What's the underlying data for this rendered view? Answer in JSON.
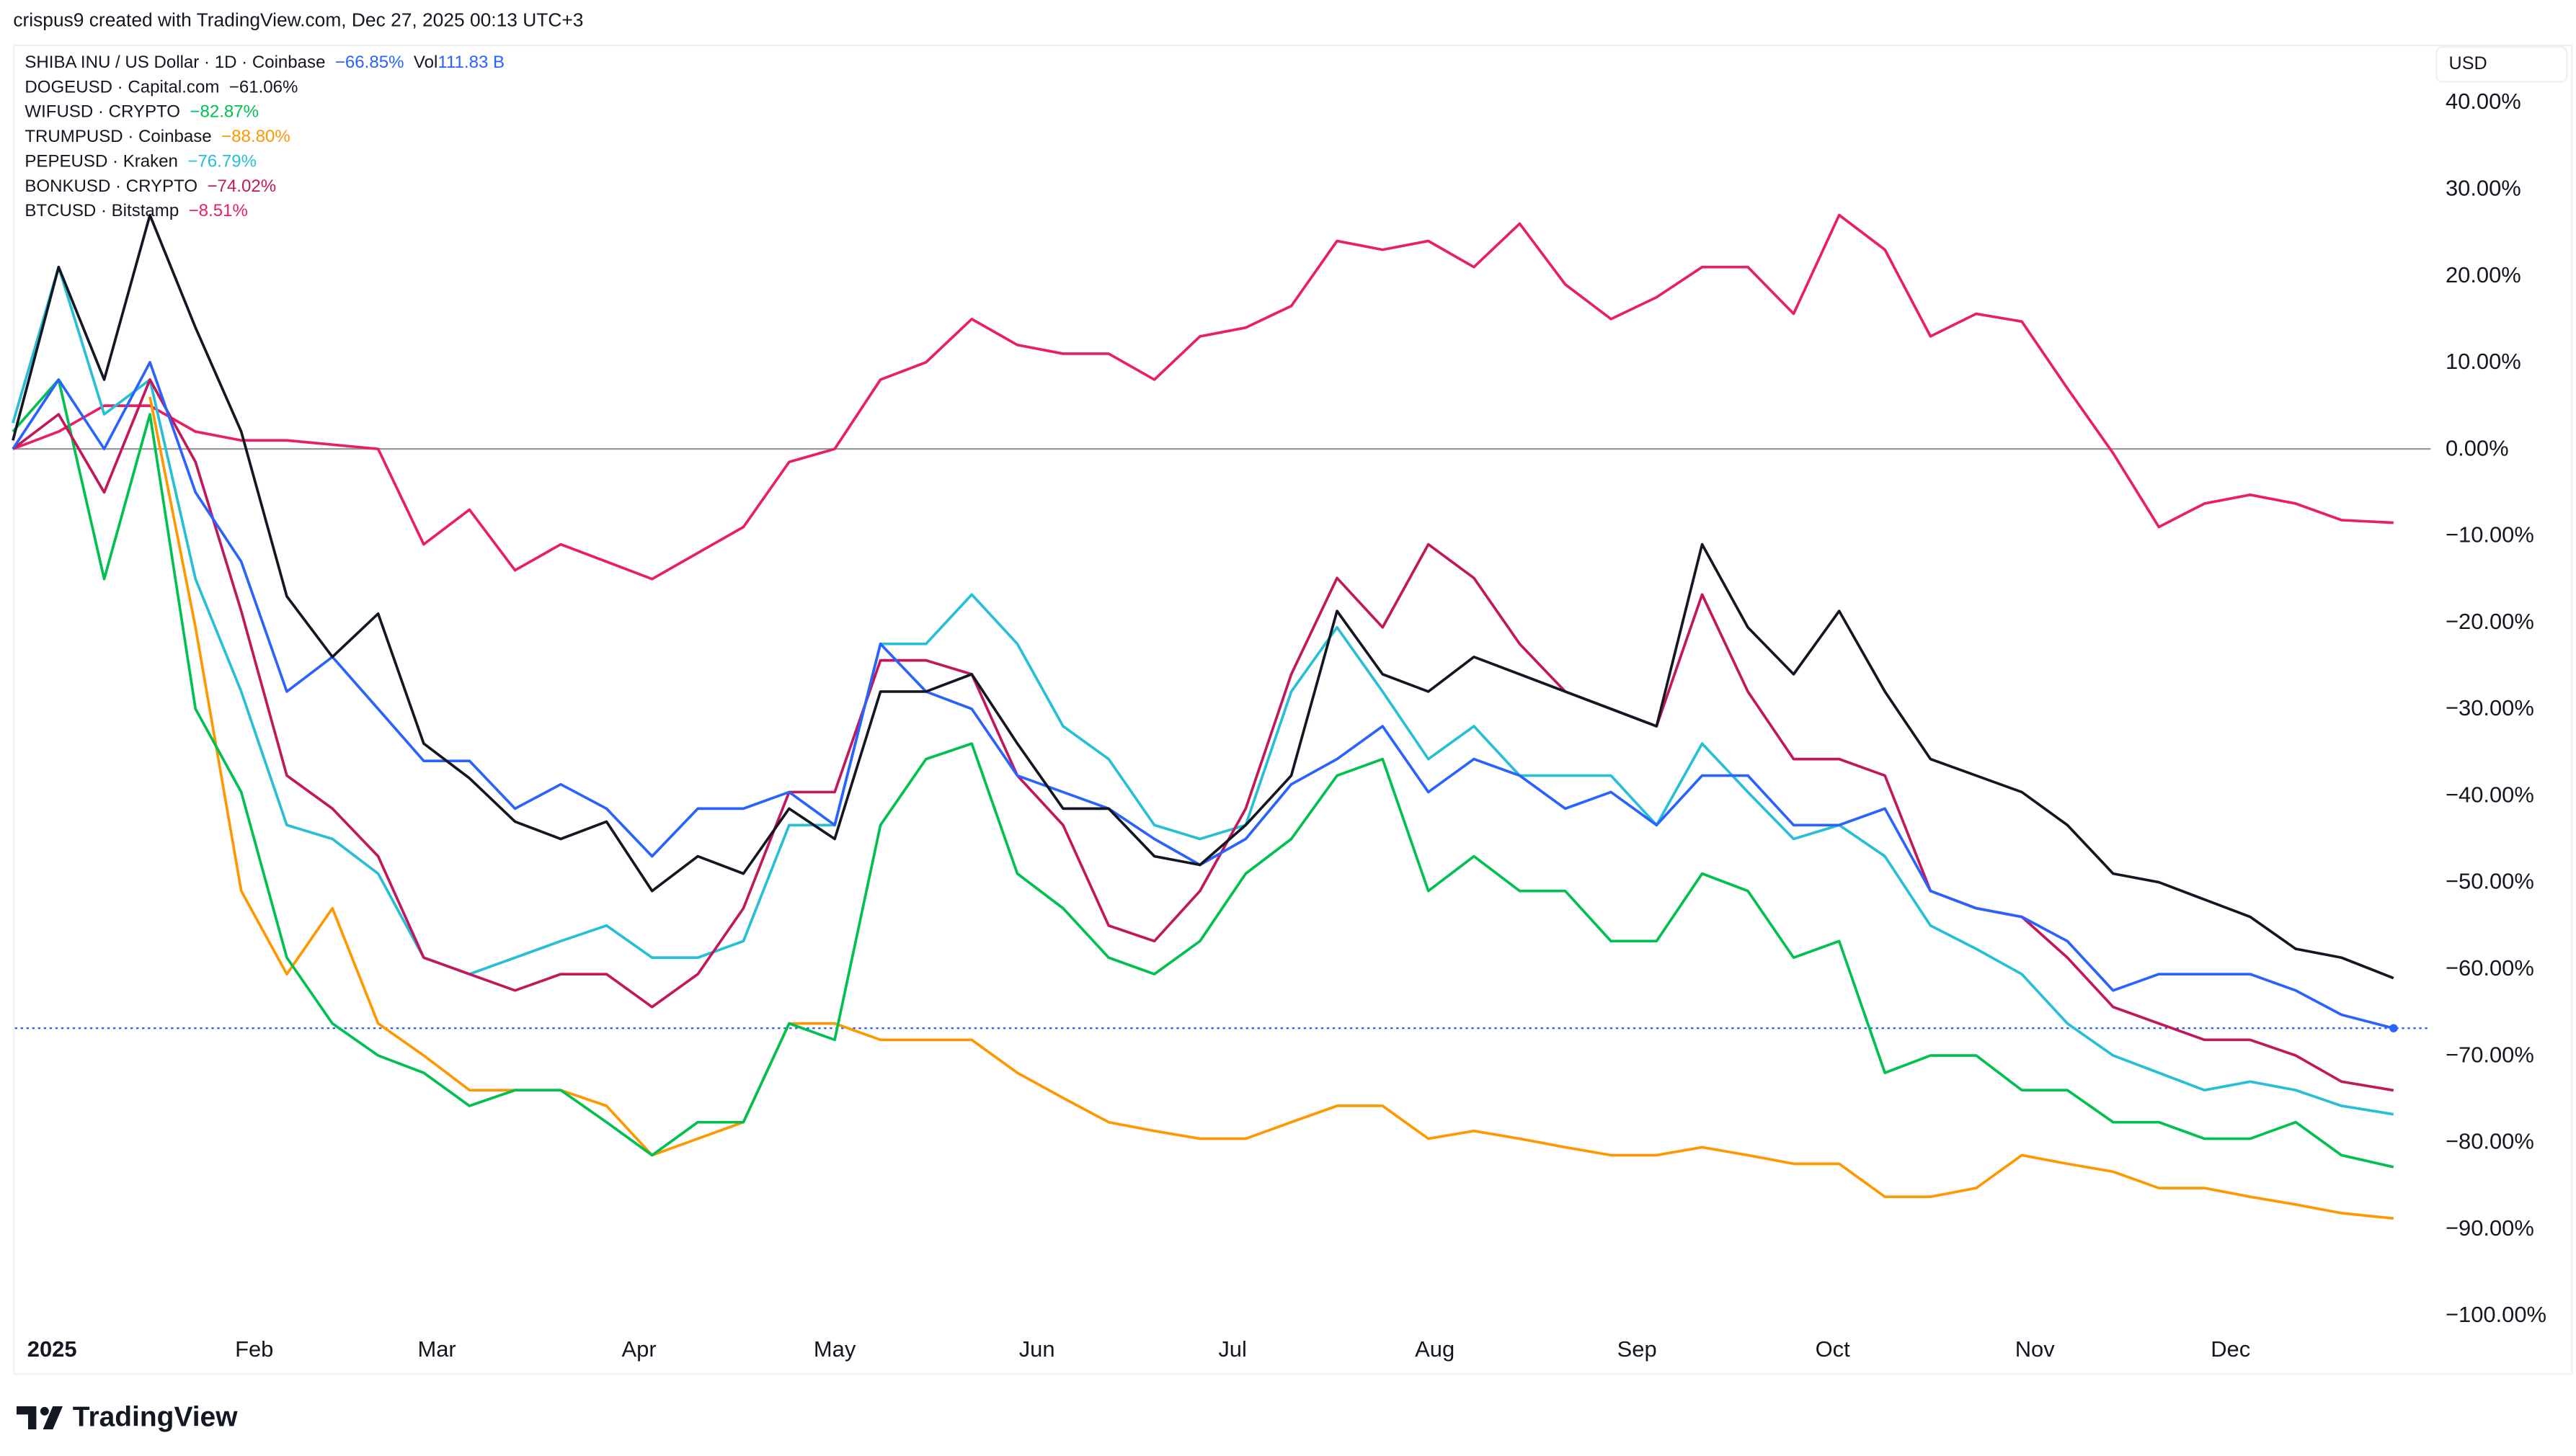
{
  "credit": "crispus9 created with TradingView.com, Dec 27, 2025 00:13 UTC+3",
  "currency_button": "USD",
  "brand": "TradingView",
  "legend": [
    {
      "label": "SHIBA INU / US Dollar · 1D · Coinbase",
      "value": "−66.85%",
      "color": "#2962ff",
      "extra_label": "Vol",
      "extra_value": "111.83 B"
    },
    {
      "label": "DOGEUSD · Capital.com",
      "value": "−61.06%",
      "color": "#131722"
    },
    {
      "label": "WIFUSD · CRYPTO",
      "value": "−82.87%",
      "color": "#00c14f"
    },
    {
      "label": "TRUMPUSD · Coinbase",
      "value": "−88.80%",
      "color": "#ff9800"
    },
    {
      "label": "PEPEUSD · Kraken",
      "value": "−76.79%",
      "color": "#26bfd6"
    },
    {
      "label": "BONKUSD · CRYPTO",
      "value": "−74.02%",
      "color": "#c2185b"
    },
    {
      "label": "BTCUSD · Bitstamp",
      "value": "−8.51%",
      "color": "#e91e63"
    }
  ],
  "chart_data": {
    "type": "line",
    "ylim": [
      -100,
      40
    ],
    "y_ticks": [
      "40.00%",
      "30.00%",
      "20.00%",
      "10.00%",
      "0.00%",
      "−10.00%",
      "−20.00%",
      "−30.00%",
      "−40.00%",
      "−50.00%",
      "−60.00%",
      "−70.00%",
      "−80.00%",
      "−90.00%",
      "−100.00%"
    ],
    "x_ticks": [
      {
        "label": "2025",
        "date": "2025-01-01"
      },
      {
        "label": "Feb",
        "date": "2025-02-01"
      },
      {
        "label": "Mar",
        "date": "2025-03-01"
      },
      {
        "label": "Apr",
        "date": "2025-04-01"
      },
      {
        "label": "May",
        "date": "2025-05-01"
      },
      {
        "label": "Jun",
        "date": "2025-06-01"
      },
      {
        "label": "Jul",
        "date": "2025-07-01"
      },
      {
        "label": "Aug",
        "date": "2025-08-01"
      },
      {
        "label": "Sep",
        "date": "2025-09-01"
      },
      {
        "label": "Oct",
        "date": "2025-10-01"
      },
      {
        "label": "Nov",
        "date": "2025-11-01"
      },
      {
        "label": "Dec",
        "date": "2025-12-01"
      }
    ],
    "grid": false,
    "zero_line": true,
    "last_value_line": -66.85,
    "dates": [
      "2024-12-26",
      "2025-01-02",
      "2025-01-09",
      "2025-01-16",
      "2025-01-23",
      "2025-01-30",
      "2025-02-06",
      "2025-02-13",
      "2025-02-20",
      "2025-02-27",
      "2025-03-06",
      "2025-03-13",
      "2025-03-20",
      "2025-03-27",
      "2025-04-03",
      "2025-04-10",
      "2025-04-17",
      "2025-04-24",
      "2025-05-01",
      "2025-05-08",
      "2025-05-15",
      "2025-05-22",
      "2025-05-29",
      "2025-06-05",
      "2025-06-12",
      "2025-06-19",
      "2025-06-26",
      "2025-07-03",
      "2025-07-10",
      "2025-07-17",
      "2025-07-24",
      "2025-07-31",
      "2025-08-07",
      "2025-08-14",
      "2025-08-21",
      "2025-08-28",
      "2025-09-04",
      "2025-09-11",
      "2025-09-18",
      "2025-09-25",
      "2025-10-02",
      "2025-10-09",
      "2025-10-16",
      "2025-10-23",
      "2025-10-30",
      "2025-11-06",
      "2025-11-13",
      "2025-11-20",
      "2025-11-27",
      "2025-12-04",
      "2025-12-11",
      "2025-12-18",
      "2025-12-26"
    ],
    "series": [
      {
        "name": "BTCUSD · Bitstamp",
        "color": "#e91e63",
        "values": [
          0,
          2,
          5,
          5,
          2,
          1,
          1,
          0.5,
          0,
          -11,
          -7,
          -14,
          -11,
          -13,
          -15,
          -12,
          -9,
          -1.5,
          0,
          8,
          10,
          15,
          12,
          11,
          11,
          8,
          13,
          14,
          16.5,
          24,
          23,
          24,
          21,
          26,
          19,
          15,
          17.5,
          21,
          21,
          15.6,
          27,
          23,
          13,
          15.6,
          14.7,
          7,
          -0.5,
          -9,
          -6.3,
          -5.3,
          -6.3,
          -8.2,
          -8.51
        ]
      },
      {
        "name": "TRUMPUSD · Coinbase",
        "color": "#ff9800",
        "values": [
          null,
          null,
          null,
          6,
          -20.6,
          -51,
          -60.6,
          -53,
          -66.3,
          -70,
          -74,
          -74,
          -74,
          -75.8,
          -81.5,
          -79.6,
          -77.7,
          -66.3,
          -66.3,
          -68.2,
          -68.2,
          -68.2,
          -72,
          -74.9,
          -77.7,
          -78.7,
          -79.6,
          -79.6,
          -77.7,
          -75.8,
          -75.8,
          -79.6,
          -78.7,
          -79.6,
          -80.6,
          -81.5,
          -81.5,
          -80.6,
          -81.5,
          -82.5,
          -82.5,
          -86.3,
          -86.3,
          -85.3,
          -81.5,
          -82.5,
          -83.4,
          -85.3,
          -85.3,
          -86.3,
          -87.2,
          -88.2,
          -88.8
        ]
      },
      {
        "name": "WIFUSD · CRYPTO",
        "color": "#00c14f",
        "values": [
          2,
          8,
          -15,
          4,
          -30,
          -39.6,
          -58.7,
          -66.3,
          -70,
          -72,
          -75.8,
          -74,
          -74,
          -77.7,
          -81.5,
          -77.7,
          -77.7,
          -66.3,
          -68.2,
          -43.4,
          -35.8,
          -34,
          -49,
          -53,
          -58.7,
          -60.6,
          -56.8,
          -49,
          -45,
          -37.7,
          -35.8,
          -51,
          -47,
          -51,
          -51,
          -56.8,
          -56.8,
          -49,
          -51,
          -58.7,
          -56.8,
          -72,
          -70,
          -70,
          -74,
          -74,
          -77.7,
          -77.7,
          -79.6,
          -79.6,
          -77.7,
          -81.5,
          -82.87
        ]
      },
      {
        "name": "PEPEUSD · Kraken",
        "color": "#26bfd6",
        "values": [
          3,
          21,
          4,
          8,
          -15,
          -28,
          -43.4,
          -45,
          -49,
          -58.7,
          -60.6,
          -58.7,
          -56.8,
          -55,
          -58.7,
          -58.7,
          -56.8,
          -43.4,
          -43.4,
          -22.5,
          -22.5,
          -16.8,
          -22.5,
          -32,
          -35.8,
          -43.4,
          -45,
          -43.4,
          -28,
          -20.6,
          -28,
          -35.8,
          -32,
          -37.7,
          -37.7,
          -37.7,
          -43.4,
          -34,
          -39.6,
          -45,
          -43.4,
          -47,
          -55,
          -57.7,
          -60.6,
          -66.3,
          -70,
          -72,
          -74,
          -73,
          -74,
          -75.8,
          -76.79
        ]
      },
      {
        "name": "BONKUSD · CRYPTO",
        "color": "#c2185b",
        "values": [
          0,
          4,
          -5,
          8,
          -1.5,
          -18.7,
          -37.7,
          -41.5,
          -47,
          -58.7,
          -60.6,
          -62.5,
          -60.6,
          -60.6,
          -64.4,
          -60.6,
          -53,
          -39.6,
          -39.6,
          -24.4,
          -24.4,
          -26,
          -37.7,
          -43.4,
          -55,
          -56.8,
          -51,
          -41.5,
          -26,
          -14.9,
          -20.6,
          -11,
          -14.9,
          -22.5,
          -28,
          -30,
          -32,
          -16.8,
          -28,
          -35.8,
          -35.8,
          -37.7,
          -51,
          -53,
          -54,
          -58.7,
          -64.4,
          -66.3,
          -68.2,
          -68.2,
          -70,
          -73,
          -74.02
        ]
      },
      {
        "name": "SHIBA INU / US Dollar · 1D · Coinbase",
        "color": "#2962ff",
        "values": [
          0,
          8,
          0,
          10,
          -5,
          -13,
          -28,
          -24,
          -30,
          -36,
          -36,
          -41.5,
          -38.7,
          -41.5,
          -47,
          -41.5,
          -41.5,
          -39.6,
          -43.4,
          -22.5,
          -28,
          -30,
          -37.7,
          -39.6,
          -41.5,
          -45,
          -48,
          -45,
          -38.7,
          -35.8,
          -32,
          -39.6,
          -35.8,
          -37.7,
          -41.5,
          -39.6,
          -43.4,
          -37.7,
          -37.7,
          -43.4,
          -43.4,
          -41.5,
          -51,
          -53,
          -54,
          -56.8,
          -62.5,
          -60.6,
          -60.6,
          -60.6,
          -62.5,
          -65.3,
          -66.85
        ]
      },
      {
        "name": "DOGEUSD · Capital.com",
        "color": "#131722",
        "values": [
          1,
          21,
          8,
          27,
          14,
          2,
          -17,
          -24,
          -19,
          -34,
          -38,
          -43,
          -45,
          -43,
          -51,
          -47,
          -49,
          -41.5,
          -45,
          -28,
          -28,
          -26,
          -34,
          -41.5,
          -41.5,
          -47,
          -48,
          -43.4,
          -37.7,
          -18.7,
          -26,
          -28,
          -24,
          -26,
          -28,
          -30,
          -32,
          -11,
          -20.6,
          -26,
          -18.7,
          -28,
          -35.8,
          -37.7,
          -39.6,
          -43.4,
          -49,
          -50,
          -52,
          -54,
          -57.7,
          -58.7,
          -61.06
        ]
      }
    ]
  }
}
